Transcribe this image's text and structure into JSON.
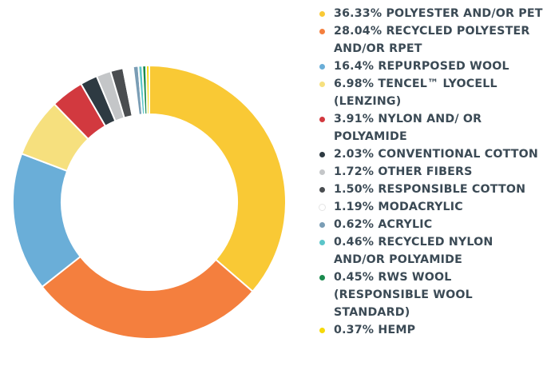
{
  "chart_data": {
    "type": "donut",
    "categories": [
      "POLYESTER AND/OR PET",
      "RECYCLED POLYESTER AND/OR RPET",
      "REPURPOSED WOOL",
      "TENCEL™ LYOCELL (LENZING)",
      "NYLON AND/ OR POLYAMIDE",
      "CONVENTIONAL COTTON",
      "OTHER FIBERS",
      "RESPONSIBLE COTTON",
      "MODACRYLIC",
      "ACRYLIC",
      "RECYCLED NYLON AND/OR POLYAMIDE",
      "RWS WOOL (RESPONSIBLE WOOL STANDARD)",
      "HEMP"
    ],
    "values": [
      36.33,
      28.04,
      16.4,
      6.98,
      3.91,
      2.03,
      1.72,
      1.5,
      1.19,
      0.62,
      0.46,
      0.45,
      0.37
    ],
    "value_labels": [
      "36.33%",
      "28.04%",
      "16.4%",
      "6.98%",
      "3.91%",
      "2.03%",
      "1.72%",
      "1.50%",
      "1.19%",
      "0.62%",
      "0.46%",
      "0.45%",
      "0.37%"
    ],
    "colors": [
      "#f9c935",
      "#f47f3e",
      "#6aaed8",
      "#f6e07e",
      "#d2393f",
      "#2e3a42",
      "#c4c6c8",
      "#4a4d50",
      "#ffffff",
      "#7a9db5",
      "#5bc5c9",
      "#1a8a4e",
      "#f5d90a"
    ]
  }
}
